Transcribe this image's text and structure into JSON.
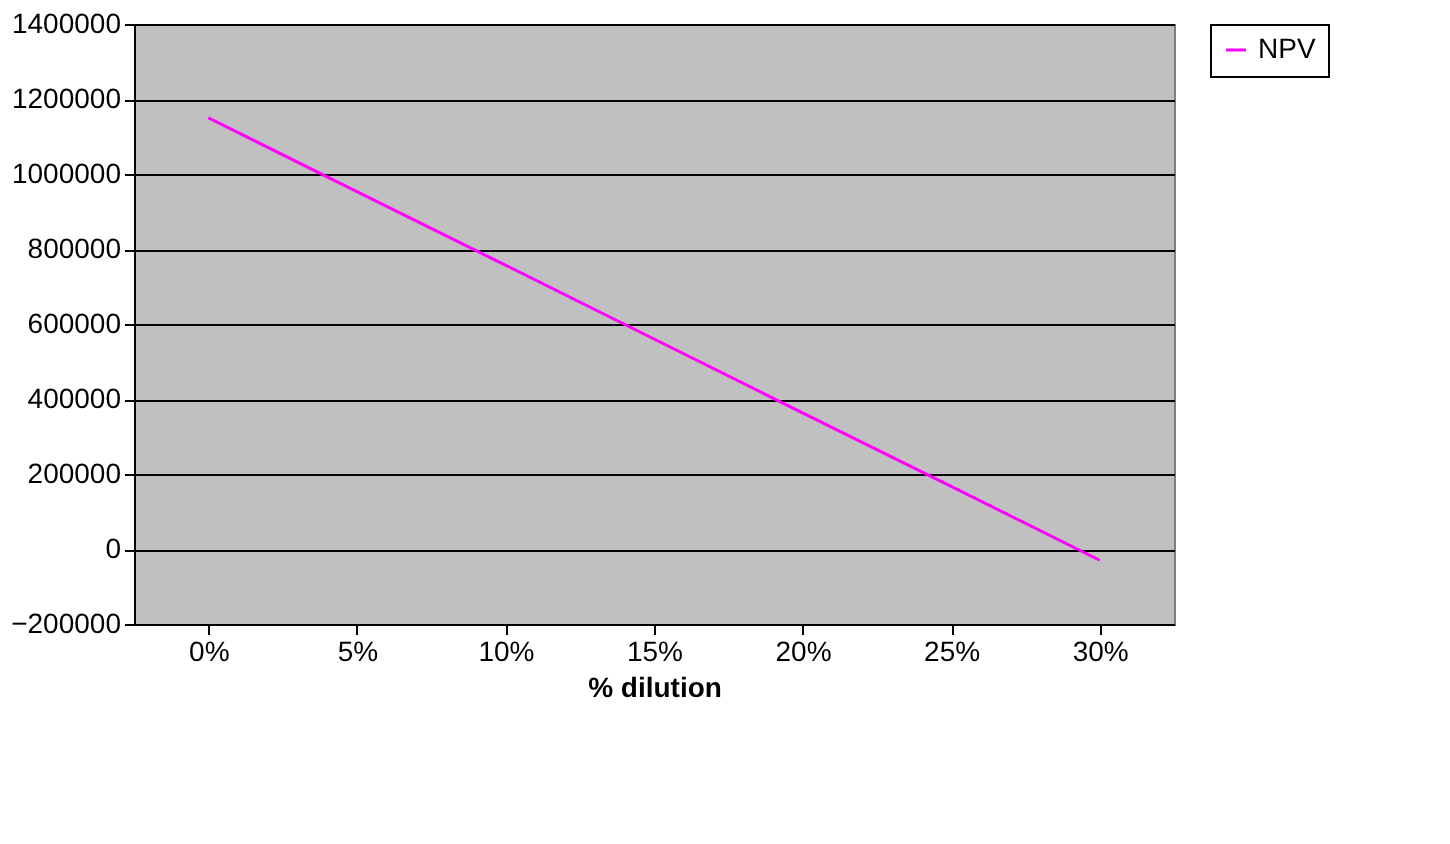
{
  "chart_data": {
    "type": "line",
    "xlabel": "% dilution",
    "categories": [
      "0%",
      "5%",
      "10%",
      "15%",
      "20%",
      "25%",
      "30%"
    ],
    "series": [
      {
        "name": "NPV",
        "color": "#ff00ff",
        "values": [
          1150000,
          953000,
          757000,
          560000,
          363000,
          167000,
          -30000
        ]
      }
    ],
    "ylim": [
      -200000,
      1400000
    ],
    "yticks": [
      -200000,
      0,
      200000,
      400000,
      600000,
      800000,
      1000000,
      1200000,
      1400000
    ],
    "grid": "y",
    "legend": "right",
    "marker": "none",
    "line_style": "solid"
  }
}
